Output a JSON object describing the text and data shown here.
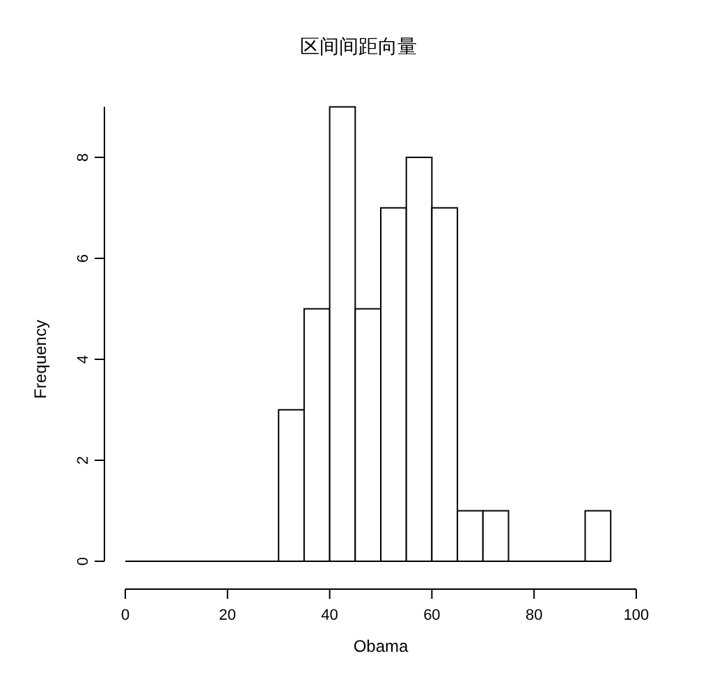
{
  "chart_data": {
    "type": "histogram",
    "title": "区间间距向量",
    "xlabel": "Obama",
    "ylabel": "Frequency",
    "bins": [
      0,
      5,
      10,
      15,
      20,
      25,
      30,
      35,
      40,
      45,
      50,
      55,
      60,
      65,
      70,
      75,
      80,
      85,
      90,
      95
    ],
    "values": [
      0,
      0,
      0,
      0,
      0,
      0,
      3,
      5,
      9,
      5,
      7,
      8,
      7,
      1,
      1,
      0,
      0,
      0,
      1
    ],
    "color": "#ffffff",
    "xlim": [
      0,
      100
    ],
    "ylim": [
      0,
      9
    ],
    "xticks": [
      0,
      20,
      40,
      60,
      80,
      100
    ],
    "yticks": [
      0,
      2,
      4,
      6,
      8
    ],
    "grid": false
  }
}
